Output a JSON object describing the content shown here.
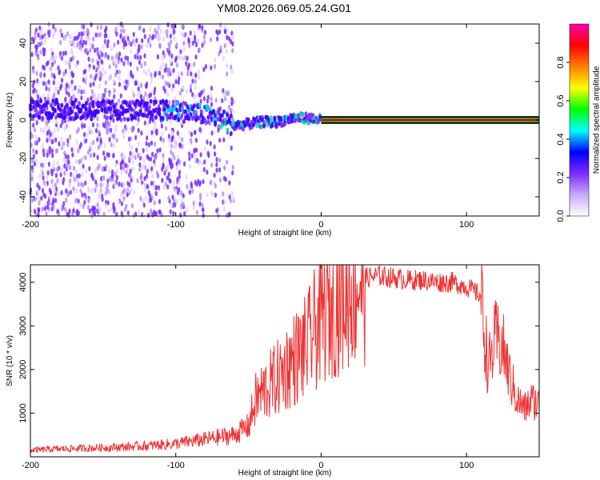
{
  "page": {
    "title": "YM08.2026.069.05.24.G01"
  },
  "chart_data": [
    {
      "type": "heatmap",
      "title": "YM08.2026.069.05.24.G01",
      "xlabel": "Height of straight line (km)",
      "ylabel": "Frequency (Hz)",
      "xlim": [
        -200,
        150
      ],
      "ylim": [
        -50,
        50
      ],
      "xticks": [
        -200,
        -100,
        0,
        100
      ],
      "yticks": [
        -40,
        -20,
        0,
        20,
        40
      ],
      "colorbar": {
        "label": "Normalized spectral amplitude",
        "range": [
          0,
          1
        ],
        "ticks": [
          "0.0",
          "0.2",
          "0.4",
          "0.6",
          "0.8"
        ],
        "colors": [
          "#ffffff",
          "#c9a8ff",
          "#7a2bff",
          "#0000ff",
          "#00ffff",
          "#00ff00",
          "#ffff00",
          "#ff7f00",
          "#ff0000",
          "#ff00aa"
        ]
      },
      "ridge": {
        "x": [
          -200,
          -150,
          -110,
          -90,
          -70,
          -60,
          -50,
          -40,
          -30,
          -20,
          -10,
          0,
          50,
          100,
          150
        ],
        "frequency": [
          6,
          5,
          5,
          4,
          1,
          -3,
          -2,
          -1,
          -1,
          1,
          1,
          0,
          0,
          0,
          0
        ]
      },
      "strong_band_x": [
        0,
        150
      ]
    },
    {
      "type": "line",
      "xlabel": "Height of straight line (km)",
      "ylabel": "SNR (10 * v/v)",
      "xlim": [
        -200,
        150
      ],
      "ylim": [
        0,
        4400
      ],
      "xticks": [
        -200,
        -100,
        0,
        100
      ],
      "yticks": [
        1000,
        2000,
        3000,
        4000
      ],
      "color": "#ee3333",
      "x": [
        -200,
        -180,
        -160,
        -140,
        -120,
        -100,
        -90,
        -80,
        -70,
        -60,
        -50,
        -45,
        -40,
        -30,
        -20,
        -10,
        0,
        10,
        20,
        30,
        40,
        50,
        60,
        70,
        80,
        90,
        100,
        105,
        110,
        115,
        120,
        125,
        130,
        135,
        140,
        145,
        150
      ],
      "y": [
        150,
        180,
        200,
        220,
        250,
        300,
        350,
        400,
        450,
        500,
        700,
        1300,
        1500,
        1800,
        2200,
        2500,
        3200,
        3600,
        3900,
        4100,
        4150,
        4100,
        4050,
        4050,
        4000,
        4000,
        3900,
        3800,
        3700,
        2000,
        2700,
        2500,
        1800,
        1300,
        1100,
        1300,
        1200
      ]
    }
  ]
}
